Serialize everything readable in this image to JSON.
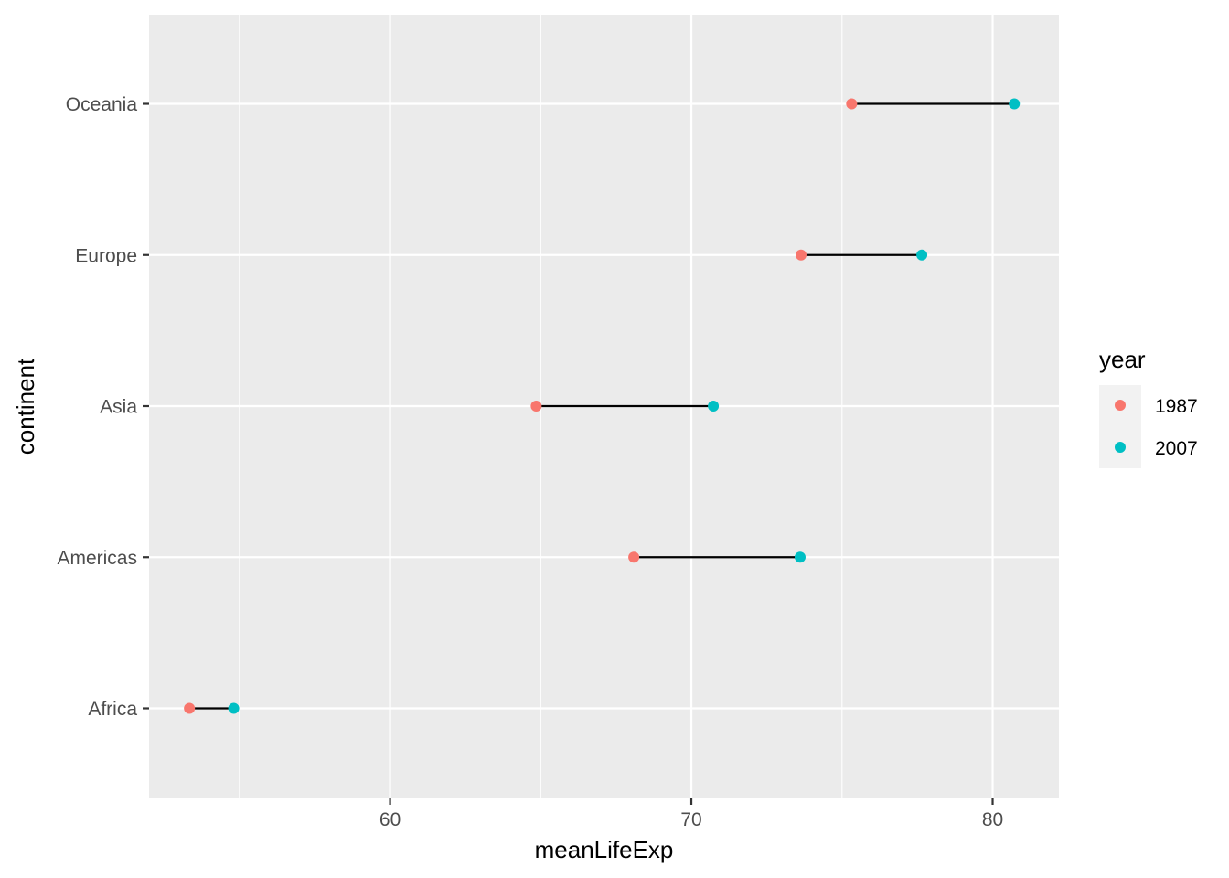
{
  "chart_data": {
    "type": "dumbbell",
    "xlabel": "meanLifeExp",
    "ylabel": "continent",
    "xlim": [
      52.0,
      82.2
    ],
    "x_ticks": [
      60,
      70,
      80
    ],
    "grid": true,
    "legend_position": "right",
    "legend_title": "year",
    "categories": [
      "Africa",
      "Americas",
      "Asia",
      "Europe",
      "Oceania"
    ],
    "series": [
      {
        "name": "1987",
        "color": "#F8766D",
        "values": [
          53.34,
          68.09,
          64.85,
          73.64,
          75.32
        ]
      },
      {
        "name": "2007",
        "color": "#00BFC4",
        "values": [
          54.81,
          73.61,
          70.73,
          77.65,
          80.72
        ]
      }
    ],
    "connector_color": "#000000",
    "panel_background": "#EBEBEB",
    "grid_color": "#FFFFFF"
  }
}
